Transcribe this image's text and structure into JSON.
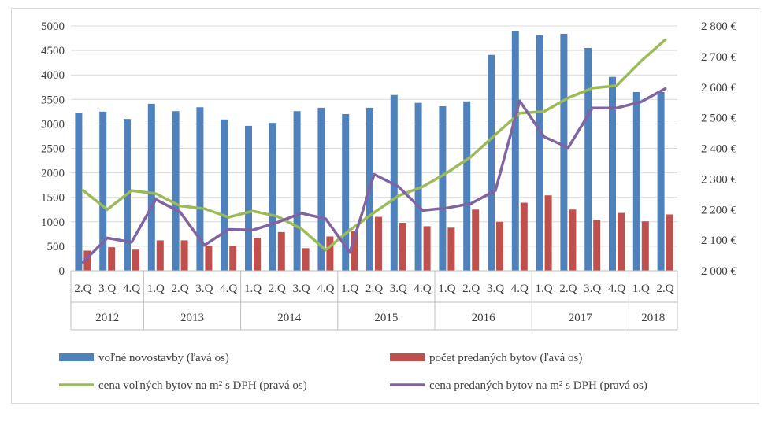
{
  "chart_data": {
    "type": "bar",
    "categories": [
      "2.Q",
      "3.Q",
      "4.Q",
      "1.Q",
      "2.Q",
      "3.Q",
      "4.Q",
      "1.Q",
      "2.Q",
      "3.Q",
      "4.Q",
      "1.Q",
      "2.Q",
      "3.Q",
      "4.Q",
      "1.Q",
      "2.Q",
      "3.Q",
      "4.Q",
      "1.Q",
      "2.Q",
      "3.Q",
      "4.Q",
      "1.Q",
      "2.Q"
    ],
    "year_groups": [
      {
        "label": "2012",
        "count": 3
      },
      {
        "label": "2013",
        "count": 4
      },
      {
        "label": "2014",
        "count": 4
      },
      {
        "label": "2015",
        "count": 4
      },
      {
        "label": "2016",
        "count": 4
      },
      {
        "label": "2017",
        "count": 4
      },
      {
        "label": "2018",
        "count": 2
      }
    ],
    "ylim": [
      0,
      5000
    ],
    "y_ticks": [
      "0",
      "500",
      "1000",
      "1500",
      "2000",
      "2500",
      "3000",
      "3500",
      "4000",
      "4500",
      "5000"
    ],
    "y2lim": [
      2000,
      2800
    ],
    "y2_ticks": [
      "2 000 €",
      "2 100 €",
      "2 200 €",
      "2 300 €",
      "2 400 €",
      "2 500 €",
      "2 600 €",
      "2 700 €",
      "2 800 €"
    ],
    "series": [
      {
        "name": "voľné novostavby (ľavá os)",
        "type": "bar",
        "axis": "left",
        "color": "#4f81bd",
        "values": [
          3230,
          3250,
          3100,
          3410,
          3260,
          3340,
          3090,
          2960,
          3020,
          3260,
          3330,
          3200,
          3330,
          3590,
          3430,
          3360,
          3460,
          4410,
          4890,
          4810,
          4840,
          4550,
          3960,
          3650,
          3650
        ]
      },
      {
        "name": "počet predaných bytov (ľavá os)",
        "type": "bar",
        "axis": "left",
        "color": "#c0504d",
        "values": [
          410,
          480,
          430,
          620,
          620,
          510,
          510,
          670,
          790,
          460,
          700,
          820,
          1100,
          980,
          910,
          880,
          1250,
          1000,
          1390,
          1540,
          1250,
          1040,
          1180,
          1010,
          1150
        ]
      },
      {
        "name": "cena voľných bytov na m² s DPH (pravá os)",
        "type": "line",
        "axis": "right",
        "color": "#9bbb59",
        "values": [
          2263,
          2200,
          2262,
          2252,
          2212,
          2203,
          2175,
          2195,
          2178,
          2137,
          2068,
          2133,
          2190,
          2245,
          2275,
          2320,
          2373,
          2445,
          2515,
          2520,
          2565,
          2597,
          2605,
          2685,
          2755
        ]
      },
      {
        "name": "cena predaných bytov na m² s DPH (pravá os)",
        "type": "line",
        "axis": "right",
        "color": "#8064a2",
        "values": [
          2028,
          2107,
          2093,
          2233,
          2192,
          2083,
          2135,
          2133,
          2158,
          2188,
          2170,
          2060,
          2315,
          2275,
          2197,
          2205,
          2220,
          2262,
          2555,
          2438,
          2402,
          2532,
          2532,
          2552,
          2595
        ]
      }
    ]
  }
}
